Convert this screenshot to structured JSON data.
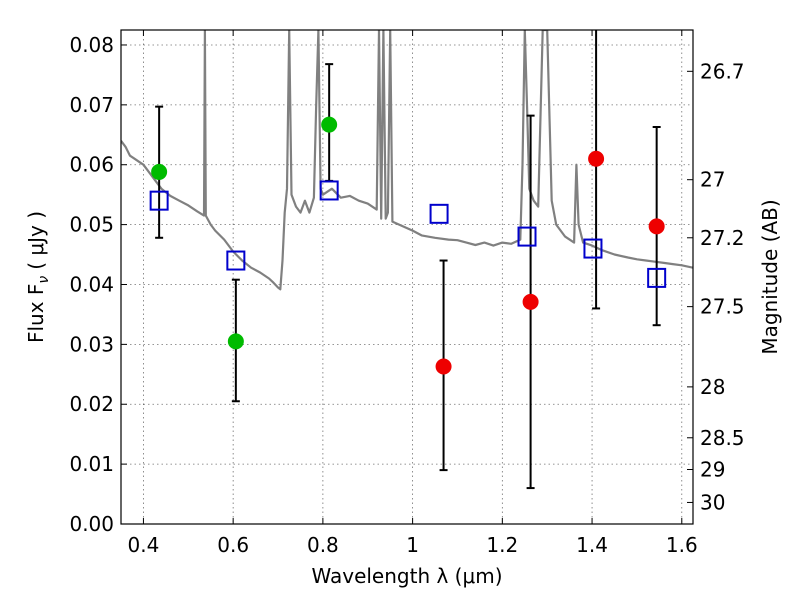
{
  "chart_data": {
    "type": "scatter",
    "xlabel": "Wavelength  λ (μm)",
    "ylabel": "Flux  F",
    "ylabel_subscript": "ν",
    "ylabel_unit": "( μJy )",
    "y2label": "Magnitude (AB)",
    "xlim": [
      0.35,
      1.625
    ],
    "ylim": [
      0.0,
      0.0825
    ],
    "grid": true,
    "x_ticks": [
      "0.4",
      "0.6",
      "0.8",
      "1",
      "1.2",
      "1.4",
      "1.6"
    ],
    "y_ticks": [
      "0.00",
      "0.01",
      "0.02",
      "0.03",
      "0.04",
      "0.05",
      "0.06",
      "0.07",
      "0.08"
    ],
    "y2_ticks": [
      {
        "label": "26.7",
        "flux": 0.0756
      },
      {
        "label": "27",
        "flux": 0.0575
      },
      {
        "label": "27.2",
        "flux": 0.0478
      },
      {
        "label": "27.5",
        "flux": 0.0363
      },
      {
        "label": "28",
        "flux": 0.0229
      },
      {
        "label": "28.5",
        "flux": 0.0144
      },
      {
        "label": "29",
        "flux": 0.0091
      },
      {
        "label": "30",
        "flux": 0.0036
      }
    ],
    "colors": {
      "model": "#808080",
      "model_phot": "#0000cc",
      "detection_green": "#00bb00",
      "detection_red": "#ee0000",
      "errorbar": "#000000"
    },
    "series": [
      {
        "marker": "circle",
        "color": "#00bb00",
        "points": [
          {
            "x": 0.435,
            "y": 0.0588,
            "yerr_low": 0.0478,
            "yerr_high": 0.0697
          },
          {
            "x": 0.606,
            "y": 0.0305,
            "yerr_low": 0.0205,
            "yerr_high": 0.0408
          },
          {
            "x": 0.814,
            "y": 0.0667,
            "yerr_low": 0.0573,
            "yerr_high": 0.0768
          }
        ]
      },
      {
        "marker": "circle",
        "color": "#ee0000",
        "points": [
          {
            "x": 1.069,
            "y": 0.0263,
            "yerr_low": 0.009,
            "yerr_high": 0.044
          },
          {
            "x": 1.263,
            "y": 0.0371,
            "yerr_low": 0.006,
            "yerr_high": 0.0682
          },
          {
            "x": 1.409,
            "y": 0.061,
            "yerr_low": 0.036,
            "yerr_high": 0.085
          },
          {
            "x": 1.544,
            "y": 0.0497,
            "yerr_low": 0.0332,
            "yerr_high": 0.0663
          }
        ]
      },
      {
        "marker": "open-square",
        "color": "#0000cc",
        "points": [
          {
            "x": 0.435,
            "y": 0.054
          },
          {
            "x": 0.606,
            "y": 0.044
          },
          {
            "x": 0.814,
            "y": 0.0557
          },
          {
            "x": 1.059,
            "y": 0.0518
          },
          {
            "x": 1.255,
            "y": 0.048
          },
          {
            "x": 1.402,
            "y": 0.046
          },
          {
            "x": 1.544,
            "y": 0.0411
          }
        ]
      },
      {
        "marker": "line",
        "color": "#808080",
        "points": [
          [
            0.35,
            0.064
          ],
          [
            0.36,
            0.063
          ],
          [
            0.37,
            0.0615
          ],
          [
            0.38,
            0.061
          ],
          [
            0.39,
            0.0605
          ],
          [
            0.4,
            0.06
          ],
          [
            0.41,
            0.059
          ],
          [
            0.42,
            0.058
          ],
          [
            0.43,
            0.057
          ],
          [
            0.44,
            0.056
          ],
          [
            0.46,
            0.0548
          ],
          [
            0.48,
            0.054
          ],
          [
            0.5,
            0.0532
          ],
          [
            0.52,
            0.0522
          ],
          [
            0.535,
            0.0515
          ],
          [
            0.537,
            0.0825
          ],
          [
            0.539,
            0.0515
          ],
          [
            0.55,
            0.05
          ],
          [
            0.56,
            0.049
          ],
          [
            0.58,
            0.0475
          ],
          [
            0.6,
            0.0455
          ],
          [
            0.62,
            0.044
          ],
          [
            0.64,
            0.0428
          ],
          [
            0.66,
            0.042
          ],
          [
            0.68,
            0.041
          ],
          [
            0.69,
            0.0403
          ],
          [
            0.7,
            0.0395
          ],
          [
            0.705,
            0.0392
          ],
          [
            0.71,
            0.044
          ],
          [
            0.715,
            0.052
          ],
          [
            0.72,
            0.056
          ],
          [
            0.725,
            0.0825
          ],
          [
            0.73,
            0.055
          ],
          [
            0.74,
            0.053
          ],
          [
            0.75,
            0.052
          ],
          [
            0.76,
            0.054
          ],
          [
            0.77,
            0.052
          ],
          [
            0.78,
            0.0545
          ],
          [
            0.785,
            0.07
          ],
          [
            0.79,
            0.0825
          ],
          [
            0.795,
            0.056
          ],
          [
            0.8,
            0.055
          ],
          [
            0.82,
            0.056
          ],
          [
            0.84,
            0.0545
          ],
          [
            0.86,
            0.0548
          ],
          [
            0.88,
            0.054
          ],
          [
            0.9,
            0.0535
          ],
          [
            0.92,
            0.0525
          ],
          [
            0.925,
            0.0825
          ],
          [
            0.93,
            0.051
          ],
          [
            0.935,
            0.0825
          ],
          [
            0.94,
            0.051
          ],
          [
            0.945,
            0.052
          ],
          [
            0.95,
            0.0825
          ],
          [
            0.955,
            0.0505
          ],
          [
            0.97,
            0.05
          ],
          [
            1.0,
            0.049
          ],
          [
            1.02,
            0.0482
          ],
          [
            1.05,
            0.0478
          ],
          [
            1.08,
            0.0475
          ],
          [
            1.1,
            0.0474
          ],
          [
            1.12,
            0.047
          ],
          [
            1.14,
            0.0466
          ],
          [
            1.16,
            0.047
          ],
          [
            1.18,
            0.0465
          ],
          [
            1.2,
            0.047
          ],
          [
            1.22,
            0.0468
          ],
          [
            1.24,
            0.0475
          ],
          [
            1.245,
            0.06
          ],
          [
            1.25,
            0.0825
          ],
          [
            1.255,
            0.07
          ],
          [
            1.26,
            0.056
          ],
          [
            1.27,
            0.054
          ],
          [
            1.28,
            0.053
          ],
          [
            1.29,
            0.0825
          ],
          [
            1.3,
            0.0825
          ],
          [
            1.31,
            0.054
          ],
          [
            1.32,
            0.05
          ],
          [
            1.34,
            0.048
          ],
          [
            1.36,
            0.047
          ],
          [
            1.365,
            0.06
          ],
          [
            1.37,
            0.05
          ],
          [
            1.38,
            0.047
          ],
          [
            1.4,
            0.0465
          ],
          [
            1.42,
            0.0458
          ],
          [
            1.45,
            0.045
          ],
          [
            1.48,
            0.0445
          ],
          [
            1.5,
            0.0442
          ],
          [
            1.52,
            0.044
          ],
          [
            1.54,
            0.0438
          ],
          [
            1.56,
            0.0436
          ],
          [
            1.58,
            0.0434
          ],
          [
            1.6,
            0.0432
          ],
          [
            1.625,
            0.0428
          ]
        ]
      }
    ]
  }
}
